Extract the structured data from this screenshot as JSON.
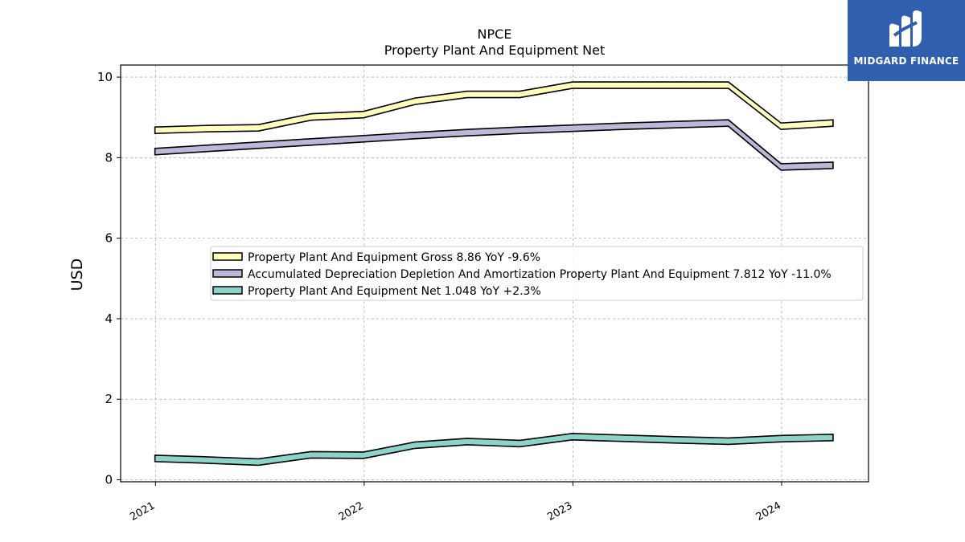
{
  "brand": {
    "name": "MIDGARD FINANCE",
    "color": "#2f5fae"
  },
  "chart_data": {
    "type": "line",
    "title": "NPCE",
    "subtitle": "Property Plant And Equipment Net",
    "xlabel": "",
    "ylabel": "USD",
    "ylim": [
      -0.05,
      10.3
    ],
    "xlim": [
      "2020-11-01",
      "2024-06-01"
    ],
    "yticks": [
      0,
      2,
      4,
      6,
      8,
      10
    ],
    "xticks": [
      {
        "date": "2021-01-01",
        "label": "2021"
      },
      {
        "date": "2022-01-01",
        "label": "2022"
      },
      {
        "date": "2023-01-01",
        "label": "2023"
      },
      {
        "date": "2024-01-01",
        "label": "2024"
      }
    ],
    "grid": true,
    "legend_position": "center",
    "series": [
      {
        "name": "Property Plant And Equipment Gross",
        "legend": "Property Plant And Equipment Gross  8.86 YoY -9.6%",
        "color": "#ffffbb",
        "x": [
          "2020-12-31",
          "2021-03-31",
          "2021-06-30",
          "2021-09-30",
          "2021-12-31",
          "2022-03-31",
          "2022-06-30",
          "2022-09-30",
          "2022-12-31",
          "2023-03-31",
          "2023-06-30",
          "2023-09-30",
          "2023-12-31",
          "2024-03-31"
        ],
        "values": [
          8.68,
          8.72,
          8.74,
          9.01,
          9.07,
          9.4,
          9.57,
          9.57,
          9.8,
          9.8,
          9.8,
          9.8,
          8.78,
          8.86
        ]
      },
      {
        "name": "Accumulated Depreciation Depletion And Amortization Property Plant And Equipment",
        "legend": "Accumulated Depreciation Depletion And Amortization Property Plant And Equipment  7.812 YoY -11.0%",
        "color": "#bcb8d8",
        "x": [
          "2020-12-31",
          "2021-03-31",
          "2021-06-30",
          "2021-09-30",
          "2021-12-31",
          "2022-03-31",
          "2022-06-30",
          "2022-09-30",
          "2022-12-31",
          "2023-03-31",
          "2023-06-30",
          "2023-09-30",
          "2023-12-31",
          "2024-03-31"
        ],
        "values": [
          8.15,
          8.23,
          8.31,
          8.39,
          8.47,
          8.55,
          8.62,
          8.68,
          8.73,
          8.78,
          8.82,
          8.86,
          7.77,
          7.81
        ]
      },
      {
        "name": "Property Plant And Equipment Net",
        "legend": "Property Plant And Equipment Net  1.048 YoY +2.3%",
        "color": "#8dd3c7",
        "x": [
          "2020-12-31",
          "2021-03-31",
          "2021-06-30",
          "2021-09-30",
          "2021-12-31",
          "2022-03-31",
          "2022-06-30",
          "2022-09-30",
          "2022-12-31",
          "2023-03-31",
          "2023-06-30",
          "2023-09-30",
          "2023-12-31",
          "2024-03-31"
        ],
        "values": [
          0.53,
          0.49,
          0.44,
          0.62,
          0.61,
          0.86,
          0.95,
          0.9,
          1.07,
          1.03,
          0.99,
          0.96,
          1.02,
          1.05
        ]
      }
    ]
  }
}
